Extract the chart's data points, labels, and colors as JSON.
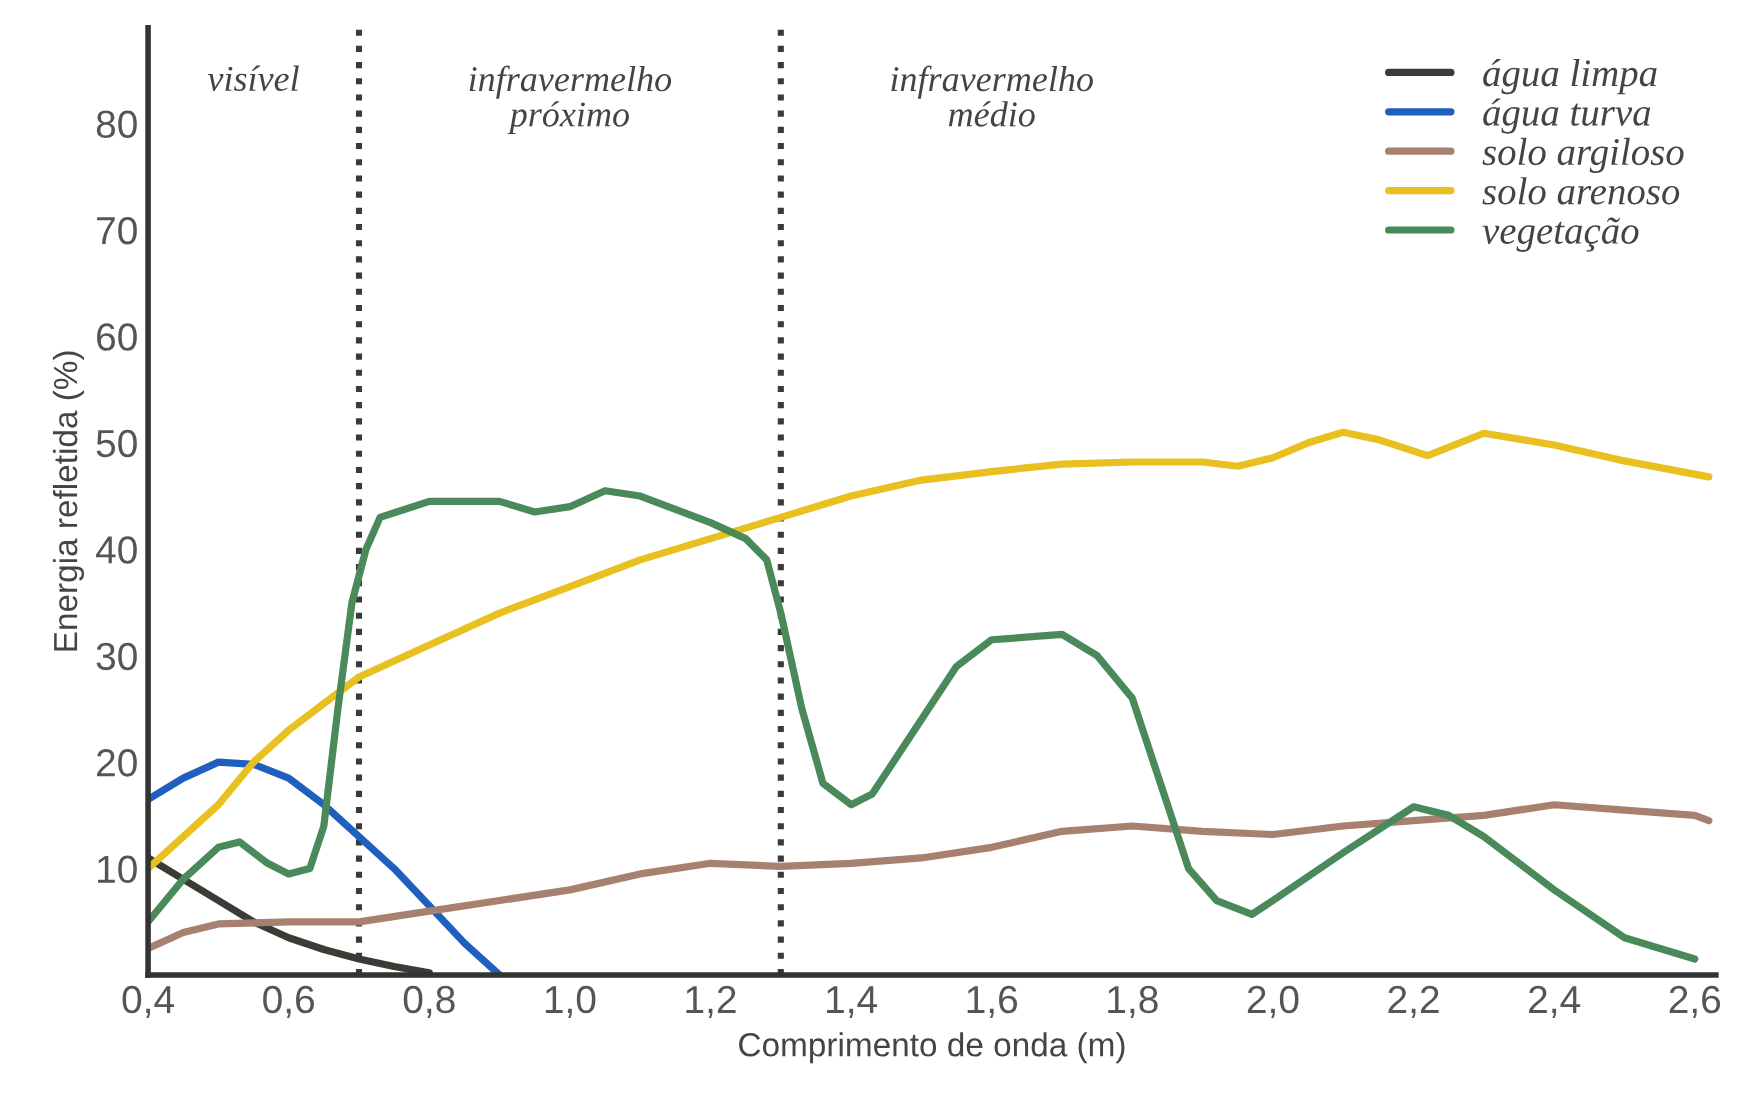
{
  "chart_data": {
    "type": "line",
    "xlabel": "Comprimento de onda (m)",
    "ylabel": "Energia refletida (%)",
    "xlim": [
      0.4,
      2.63
    ],
    "ylim": [
      0,
      89
    ],
    "xticks": [
      {
        "value": 0.4,
        "label": "0,4"
      },
      {
        "value": 0.6,
        "label": "0,6"
      },
      {
        "value": 0.8,
        "label": "0,8"
      },
      {
        "value": 1.0,
        "label": "1,0"
      },
      {
        "value": 1.2,
        "label": "1,2"
      },
      {
        "value": 1.4,
        "label": "1,4"
      },
      {
        "value": 1.6,
        "label": "1,6"
      },
      {
        "value": 1.8,
        "label": "1,8"
      },
      {
        "value": 2.0,
        "label": "2,0"
      },
      {
        "value": 2.2,
        "label": "2,2"
      },
      {
        "value": 2.4,
        "label": "2,4"
      },
      {
        "value": 2.6,
        "label": "2,6"
      }
    ],
    "yticks": [
      10,
      20,
      30,
      40,
      50,
      60,
      70,
      80
    ],
    "grid": false,
    "legend": "top right",
    "marker": "none",
    "line_style": "solid",
    "ref_lines": [
      {
        "axis": "x",
        "value": 0.7,
        "line_style": "dotted",
        "color": "#3a3a3a"
      },
      {
        "axis": "x",
        "value": 1.3,
        "line_style": "dotted",
        "color": "#3a3a3a"
      }
    ],
    "annotations": [
      "visível",
      "infravermelho\npróximo",
      "infravermelho\nmédio"
    ],
    "series": [
      {
        "name": "água limpa",
        "color": "#3a3d35",
        "x": [
          0.4,
          0.45,
          0.5,
          0.55,
          0.6,
          0.65,
          0.7,
          0.75,
          0.8
        ],
        "values": [
          11,
          9,
          7,
          5,
          3.5,
          2.4,
          1.5,
          0.8,
          0.2
        ]
      },
      {
        "name": "água turva",
        "color": "#1f5fbf",
        "x": [
          0.4,
          0.45,
          0.5,
          0.55,
          0.6,
          0.65,
          0.7,
          0.75,
          0.8,
          0.85,
          0.9
        ],
        "values": [
          16.5,
          18.5,
          20,
          19.8,
          18.5,
          16,
          13,
          10,
          6.5,
          3,
          0
        ]
      },
      {
        "name": "solo argiloso",
        "color": "#a88070",
        "x": [
          0.4,
          0.45,
          0.5,
          0.6,
          0.7,
          0.8,
          0.9,
          1.0,
          1.1,
          1.2,
          1.3,
          1.4,
          1.5,
          1.6,
          1.7,
          1.8,
          1.9,
          2.0,
          2.1,
          2.2,
          2.3,
          2.4,
          2.5,
          2.6,
          2.62
        ],
        "values": [
          2.5,
          4,
          4.8,
          5,
          5,
          6,
          7,
          8,
          9.5,
          10.5,
          10.2,
          10.5,
          11,
          12,
          13.5,
          14,
          13.5,
          13.2,
          14,
          14.5,
          15,
          16,
          15.5,
          15,
          14.5
        ]
      },
      {
        "name": "solo arenoso",
        "color": "#e8c020",
        "x": [
          0.4,
          0.5,
          0.55,
          0.6,
          0.7,
          0.8,
          0.9,
          1.0,
          1.1,
          1.2,
          1.3,
          1.4,
          1.5,
          1.6,
          1.7,
          1.8,
          1.9,
          1.95,
          2.0,
          2.05,
          2.1,
          2.15,
          2.22,
          2.3,
          2.4,
          2.5,
          2.62
        ],
        "values": [
          10,
          16,
          20,
          23,
          28,
          31,
          34,
          36.5,
          39,
          41,
          43,
          45,
          46.5,
          47.3,
          48,
          48.2,
          48.2,
          47.8,
          48.6,
          50,
          51,
          50.3,
          48.8,
          50.9,
          49.8,
          48.3,
          46.8
        ]
      },
      {
        "name": "vegetação",
        "color": "#4a8a5a",
        "x": [
          0.4,
          0.45,
          0.5,
          0.53,
          0.57,
          0.6,
          0.63,
          0.65,
          0.67,
          0.69,
          0.71,
          0.73,
          0.8,
          0.9,
          0.95,
          1.0,
          1.05,
          1.1,
          1.2,
          1.25,
          1.28,
          1.3,
          1.33,
          1.36,
          1.4,
          1.43,
          1.5,
          1.55,
          1.6,
          1.7,
          1.75,
          1.8,
          1.85,
          1.88,
          1.92,
          1.97,
          2.0,
          2.1,
          2.2,
          2.25,
          2.3,
          2.4,
          2.5,
          2.6
        ],
        "values": [
          5,
          9,
          12,
          12.5,
          10.5,
          9.5,
          10,
          14,
          25,
          35,
          40,
          43,
          44.5,
          44.5,
          43.5,
          44,
          45.5,
          45,
          42.5,
          41,
          39,
          34,
          25,
          18,
          16,
          17,
          24,
          29,
          31.5,
          32,
          30,
          26,
          16,
          10,
          7,
          5.7,
          7,
          11.5,
          15.8,
          15,
          13,
          8,
          3.5,
          1.5
        ]
      }
    ]
  }
}
